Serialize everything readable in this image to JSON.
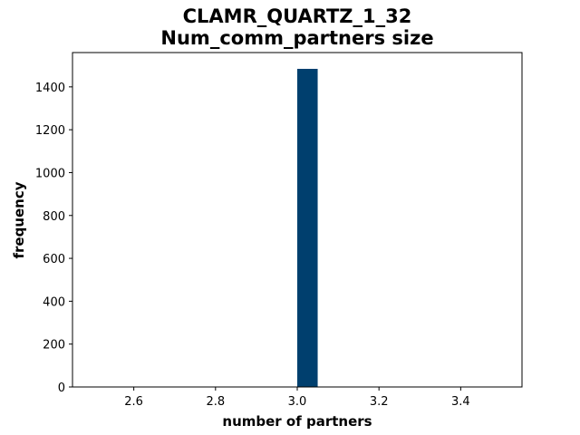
{
  "chart_data": {
    "type": "bar",
    "title_line1": "CLAMR_QUARTZ_1_32",
    "title_line2": "Num_comm_partners size",
    "xlabel": "number of partners",
    "ylabel": "frequency",
    "xlim": [
      2.45,
      3.55
    ],
    "ylim": [
      0,
      1560
    ],
    "xticks": [
      2.6,
      2.8,
      3.0,
      3.2,
      3.4
    ],
    "xtick_labels": [
      "2.6",
      "2.8",
      "3.0",
      "3.2",
      "3.4"
    ],
    "yticks": [
      0,
      200,
      400,
      600,
      800,
      1000,
      1200,
      1400
    ],
    "ytick_labels": [
      "0",
      "200",
      "400",
      "600",
      "800",
      "1000",
      "1200",
      "1400"
    ],
    "bars": [
      {
        "x_start": 3.0,
        "x_end": 3.05,
        "value": 1484
      }
    ],
    "bar_color": "#003f6e",
    "grid": false,
    "legend": "none"
  }
}
